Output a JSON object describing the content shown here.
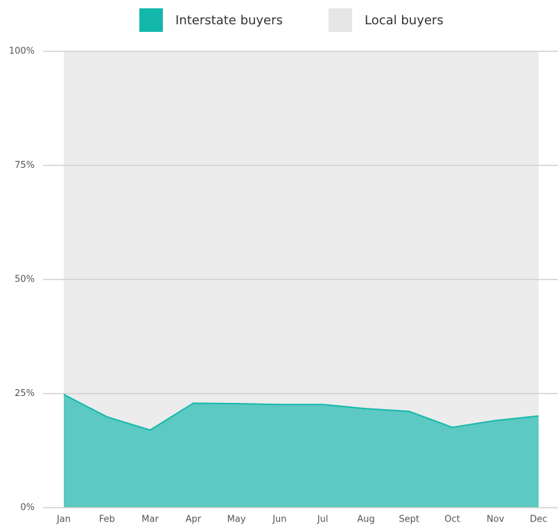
{
  "chart_data": {
    "type": "stacked_area",
    "categories": [
      "Jan",
      "Feb",
      "Mar",
      "Apr",
      "May",
      "Jun",
      "Jul",
      "Aug",
      "Sept",
      "Oct",
      "Nov",
      "Dec"
    ],
    "series": [
      {
        "name": "Interstate buyers",
        "color": "#14b8ab",
        "values": [
          24.8,
          19.9,
          17.0,
          22.9,
          22.8,
          22.6,
          22.6,
          21.7,
          21.1,
          17.6,
          19.1,
          20.1
        ]
      },
      {
        "name": "Local buyers",
        "color": "#ececec",
        "values": [
          75.2,
          80.1,
          83.0,
          77.1,
          77.2,
          77.4,
          77.4,
          78.3,
          78.9,
          82.4,
          80.9,
          79.9
        ]
      }
    ],
    "ylim": [
      0,
      100
    ],
    "yticks": [
      {
        "value": 0,
        "label": "0%"
      },
      {
        "value": 25,
        "label": "25%"
      },
      {
        "value": 50,
        "label": "50%"
      },
      {
        "value": 75,
        "label": "75%"
      },
      {
        "value": 100,
        "label": "100%"
      }
    ],
    "grid": true
  }
}
